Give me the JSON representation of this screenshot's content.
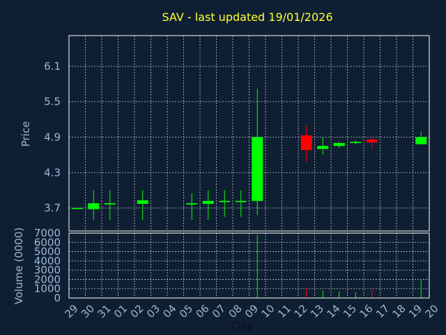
{
  "colors": {
    "background": "#0f1f33",
    "axes": "#ffffff",
    "grid": "#ffffff",
    "title": "#ffff33",
    "tick_text": "#9ab8d6",
    "xlabel_text": "#0a0f18",
    "up": "#00ff00",
    "down": "#ff0000"
  },
  "chart_data": {
    "type": "candlestick",
    "title": "SAV - last updated 19/01/2026",
    "xlabel": "Day",
    "price_panel": {
      "ylabel": "Price",
      "ylim": [
        3.31,
        6.62
      ],
      "yticks": [
        "3.7",
        "4.3",
        "4.9",
        "5.5",
        "6.1"
      ],
      "grid": true
    },
    "volume_panel": {
      "ylabel": "Volume (0000)",
      "ylim": [
        0,
        7000
      ],
      "yticks": [
        "0",
        "1000",
        "2000",
        "3000",
        "4000",
        "5000",
        "6000",
        "7000"
      ],
      "grid": true
    },
    "x_tick_labels": [
      "29",
      "30",
      "31",
      "01",
      "02",
      "03",
      "04",
      "05",
      "06",
      "07",
      "08",
      "09",
      "10",
      "11",
      "12",
      "13",
      "14",
      "15",
      "16",
      "17",
      "18",
      "19",
      "20"
    ],
    "candles": [
      {
        "day": "29",
        "open": 3.7,
        "high": 3.7,
        "low": 3.7,
        "close": 3.7,
        "volume": 0
      },
      {
        "day": "30",
        "open": 3.68,
        "high": 4.0,
        "low": 3.5,
        "close": 3.78,
        "volume": 50
      },
      {
        "day": "31",
        "open": 3.76,
        "high": 4.0,
        "low": 3.5,
        "close": 3.78,
        "volume": 50
      },
      {
        "day": "02",
        "open": 3.77,
        "high": 4.0,
        "low": 3.5,
        "close": 3.83,
        "volume": 50
      },
      {
        "day": "05",
        "open": 3.76,
        "high": 3.95,
        "low": 3.5,
        "close": 3.78,
        "volume": 50
      },
      {
        "day": "06",
        "open": 3.77,
        "high": 4.0,
        "low": 3.5,
        "close": 3.82,
        "volume": 50
      },
      {
        "day": "07",
        "open": 3.8,
        "high": 4.0,
        "low": 3.55,
        "close": 3.82,
        "volume": 50
      },
      {
        "day": "08",
        "open": 3.8,
        "high": 4.0,
        "low": 3.55,
        "close": 3.82,
        "volume": 50
      },
      {
        "day": "09",
        "open": 3.82,
        "high": 5.72,
        "low": 3.58,
        "close": 4.9,
        "volume": 6800
      },
      {
        "day": "12",
        "open": 4.93,
        "high": 5.1,
        "low": 4.48,
        "close": 4.68,
        "volume": 1150
      },
      {
        "day": "13",
        "open": 4.7,
        "high": 4.9,
        "low": 4.6,
        "close": 4.75,
        "volume": 800
      },
      {
        "day": "14",
        "open": 4.75,
        "high": 4.82,
        "low": 4.72,
        "close": 4.8,
        "volume": 700
      },
      {
        "day": "15",
        "open": 4.8,
        "high": 4.85,
        "low": 4.78,
        "close": 4.82,
        "volume": 600
      },
      {
        "day": "16",
        "open": 4.86,
        "high": 4.88,
        "low": 4.7,
        "close": 4.81,
        "volume": 900
      },
      {
        "day": "19",
        "open": 4.78,
        "high": 5.0,
        "low": 4.78,
        "close": 4.9,
        "volume": 1900
      }
    ]
  }
}
